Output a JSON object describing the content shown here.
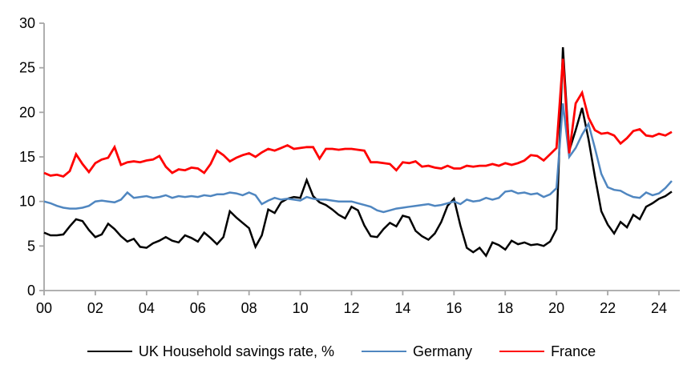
{
  "chart_data": {
    "type": "line",
    "x_start": 2000,
    "x_step": 0.25,
    "x_axis": {
      "tick_labels": [
        "00",
        "02",
        "04",
        "06",
        "08",
        "10",
        "12",
        "14",
        "16",
        "18",
        "20",
        "22",
        "24"
      ],
      "tick_years": [
        2000,
        2002,
        2004,
        2006,
        2008,
        2010,
        2012,
        2014,
        2016,
        2018,
        2020,
        2022,
        2024
      ]
    },
    "y_axis": {
      "tick_labels": [
        "0",
        "5",
        "10",
        "15",
        "20",
        "25",
        "30"
      ],
      "tick_values": [
        0,
        5,
        10,
        15,
        20,
        25,
        30
      ],
      "min": 0,
      "max": 30
    },
    "grid": "off",
    "legend_position": "bottom-center",
    "axis_color": "#a6a6a6",
    "series": [
      {
        "name": "UK Household savings rate, %",
        "color": "#000000",
        "stroke_width": 2.5,
        "values": [
          6.5,
          6.2,
          6.2,
          6.3,
          7.2,
          8.0,
          7.8,
          6.8,
          6.0,
          6.3,
          7.5,
          6.9,
          6.1,
          5.5,
          5.8,
          4.9,
          4.8,
          5.3,
          5.6,
          6.0,
          5.6,
          5.4,
          6.2,
          5.9,
          5.5,
          6.5,
          5.9,
          5.2,
          6.0,
          8.9,
          8.2,
          7.6,
          7.0,
          4.9,
          6.2,
          9.1,
          8.7,
          9.9,
          10.3,
          10.5,
          10.4,
          12.4,
          10.6,
          9.9,
          9.6,
          9.1,
          8.5,
          8.1,
          9.4,
          9.0,
          7.3,
          6.1,
          6.0,
          6.9,
          7.6,
          7.2,
          8.4,
          8.2,
          6.7,
          6.1,
          5.7,
          6.4,
          7.7,
          9.5,
          10.3,
          7.3,
          4.8,
          4.3,
          4.8,
          3.9,
          5.4,
          5.1,
          4.6,
          5.6,
          5.2,
          5.4,
          5.1,
          5.2,
          5.0,
          5.5,
          6.9,
          27.3,
          15.7,
          18.0,
          20.5,
          17.0,
          12.8,
          8.9,
          7.4,
          6.4,
          7.7,
          7.1,
          8.5,
          8.0,
          9.4,
          9.8,
          10.3,
          10.6,
          11.1
        ]
      },
      {
        "name": "Germany",
        "color": "#4f86c0",
        "stroke_width": 2.5,
        "values": [
          10.0,
          9.8,
          9.5,
          9.3,
          9.2,
          9.2,
          9.3,
          9.5,
          10.0,
          10.1,
          10.0,
          9.9,
          10.2,
          11.0,
          10.4,
          10.5,
          10.6,
          10.4,
          10.5,
          10.7,
          10.4,
          10.6,
          10.5,
          10.6,
          10.5,
          10.7,
          10.6,
          10.8,
          10.8,
          11.0,
          10.9,
          10.7,
          11.0,
          10.7,
          9.7,
          10.1,
          10.4,
          10.2,
          10.3,
          10.2,
          10.1,
          10.5,
          10.3,
          10.2,
          10.2,
          10.1,
          10.0,
          10.0,
          10.0,
          9.8,
          9.6,
          9.4,
          9.0,
          8.8,
          9.0,
          9.2,
          9.3,
          9.4,
          9.5,
          9.6,
          9.7,
          9.5,
          9.6,
          9.8,
          10.0,
          9.7,
          10.2,
          10.0,
          10.1,
          10.4,
          10.2,
          10.4,
          11.1,
          11.2,
          10.9,
          11.0,
          10.8,
          10.9,
          10.5,
          10.8,
          11.5,
          21.0,
          15.0,
          16.0,
          17.5,
          18.7,
          16.0,
          13.1,
          11.6,
          11.3,
          11.2,
          10.8,
          10.5,
          10.4,
          11.0,
          10.7,
          10.9,
          11.5,
          12.3
        ]
      },
      {
        "name": "France",
        "color": "#ff0000",
        "stroke_width": 2.8,
        "values": [
          13.2,
          12.9,
          13.0,
          12.8,
          13.4,
          15.3,
          14.2,
          13.3,
          14.3,
          14.7,
          14.9,
          16.1,
          14.1,
          14.4,
          14.5,
          14.4,
          14.6,
          14.7,
          15.1,
          13.9,
          13.2,
          13.6,
          13.5,
          13.8,
          13.7,
          13.2,
          14.2,
          15.7,
          15.2,
          14.5,
          14.9,
          15.2,
          15.4,
          15.0,
          15.5,
          15.9,
          15.7,
          16.0,
          16.3,
          15.9,
          16.0,
          16.1,
          16.1,
          14.8,
          15.9,
          15.9,
          15.8,
          15.9,
          15.9,
          15.8,
          15.7,
          14.4,
          14.4,
          14.3,
          14.2,
          13.5,
          14.4,
          14.3,
          14.5,
          13.9,
          14.0,
          13.8,
          13.7,
          14.0,
          13.7,
          13.7,
          14.0,
          13.9,
          14.0,
          14.0,
          14.2,
          14.0,
          14.3,
          14.1,
          14.3,
          14.6,
          15.2,
          15.1,
          14.6,
          15.3,
          16.0,
          26.0,
          15.4,
          21.0,
          22.2,
          19.4,
          18.0,
          17.6,
          17.7,
          17.4,
          16.5,
          17.1,
          17.9,
          18.1,
          17.4,
          17.3,
          17.6,
          17.4,
          17.8
        ]
      }
    ]
  },
  "legend": {
    "items": [
      {
        "label": "UK Household savings rate, %"
      },
      {
        "label": "Germany"
      },
      {
        "label": "France"
      }
    ]
  }
}
